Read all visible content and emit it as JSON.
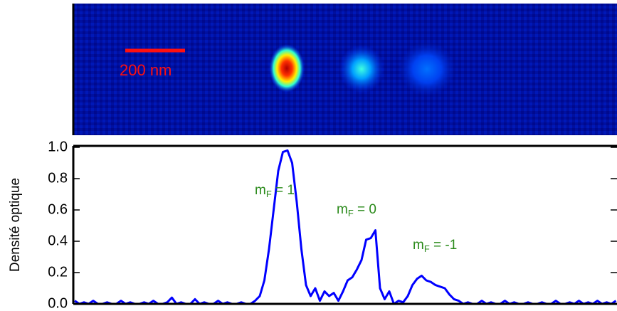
{
  "chart_data": {
    "type": "line",
    "image_label": "200 nm",
    "ylabel": "Densité optique",
    "ylim": [
      0,
      1
    ],
    "yticks": [
      {
        "value": 0,
        "label": "0.0"
      },
      {
        "value": 0.2,
        "label": "0.2"
      },
      {
        "value": 0.4,
        "label": "0.4"
      },
      {
        "value": 0.6,
        "label": "0.6"
      },
      {
        "value": 0.8,
        "label": "0.8"
      },
      {
        "value": 1,
        "label": "1.0"
      }
    ],
    "color": "#0000ff",
    "annotation_color": "#2a8a1a",
    "annotations": [
      {
        "base": "m",
        "sub": "F",
        "rest": " = 1"
      },
      {
        "base": "m",
        "sub": "F",
        "rest": " = 0"
      },
      {
        "base": "m",
        "sub": "F",
        "rest": " = -1"
      }
    ],
    "values": [
      0.02,
      0.0,
      0.01,
      0.0,
      0.02,
      0.0,
      0.0,
      0.01,
      0.0,
      0.0,
      0.02,
      0.0,
      0.01,
      0.0,
      0.0,
      0.01,
      0.0,
      0.02,
      0.0,
      0.0,
      0.01,
      0.04,
      0.0,
      0.01,
      0.0,
      0.0,
      0.03,
      0.0,
      0.01,
      0.0,
      0.0,
      0.02,
      0.0,
      0.01,
      0.0,
      0.0,
      0.01,
      0.0,
      0.0,
      0.02,
      0.05,
      0.15,
      0.35,
      0.6,
      0.85,
      0.97,
      0.98,
      0.9,
      0.65,
      0.35,
      0.12,
      0.05,
      0.1,
      0.02,
      0.08,
      0.05,
      0.07,
      0.02,
      0.08,
      0.15,
      0.17,
      0.22,
      0.28,
      0.41,
      0.42,
      0.47,
      0.1,
      0.03,
      0.08,
      0.0,
      0.02,
      0.01,
      0.05,
      0.12,
      0.16,
      0.18,
      0.15,
      0.14,
      0.12,
      0.11,
      0.1,
      0.06,
      0.03,
      0.02,
      0.0,
      0.01,
      0.0,
      0.0,
      0.02,
      0.0,
      0.01,
      0.0,
      0.0,
      0.02,
      0.0,
      0.01,
      0.0,
      0.0,
      0.01,
      0.0,
      0.0,
      0.01,
      0.0,
      0.0,
      0.02,
      0.0,
      0.0,
      0.01,
      0.0,
      0.02,
      0.0,
      0.01,
      0.0,
      0.02,
      0.0,
      0.01,
      0.0,
      0.02
    ]
  }
}
